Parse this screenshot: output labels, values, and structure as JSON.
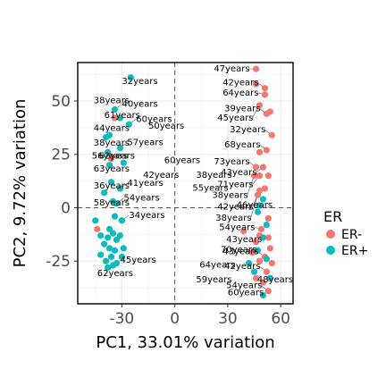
{
  "chart_data": {
    "type": "scatter",
    "title": "",
    "xlabel": "PC1, 33.01% variation",
    "ylabel": "PC2, 9.72% variation",
    "xlim": [
      -55,
      67
    ],
    "ylim": [
      -45,
      68
    ],
    "xticks": [
      -30,
      0,
      30,
      60
    ],
    "xtick_labels": [
      "-30",
      "0",
      "30",
      "60"
    ],
    "yticks": [
      -25,
      0,
      25,
      50
    ],
    "ytick_labels": [
      "-25",
      "0",
      "25",
      "50"
    ],
    "grid": true,
    "reference_lines": {
      "x": 0,
      "y": 0
    },
    "legend": {
      "title": "ER",
      "position": "right",
      "entries": [
        {
          "label": "ER-",
          "color": "#F8766D"
        },
        {
          "label": "ER+",
          "color": "#00BFC4"
        }
      ]
    },
    "series": [
      {
        "name": "ER-",
        "color": "#F8766D",
        "points": [
          {
            "x": 46,
            "y": 65,
            "label": "47years"
          },
          {
            "x": 46,
            "y": 58
          },
          {
            "x": 51,
            "y": 56,
            "label": "42years"
          },
          {
            "x": 51,
            "y": 53,
            "label": "64years"
          },
          {
            "x": 52,
            "y": 44,
            "label": "39years"
          },
          {
            "x": 54,
            "y": 45
          },
          {
            "x": 48,
            "y": 48,
            "label": "45years"
          },
          {
            "x": 55,
            "y": 34,
            "label": "32years"
          },
          {
            "x": 52,
            "y": 27,
            "label": "68years"
          },
          {
            "x": 48,
            "y": 26
          },
          {
            "x": 46,
            "y": 19,
            "label": "73years"
          },
          {
            "x": 50,
            "y": 19,
            "label": "43years"
          },
          {
            "x": 48,
            "y": 15,
            "label": "71years"
          },
          {
            "x": 53,
            "y": 15
          },
          {
            "x": 45,
            "y": 15,
            "label": "38years"
          },
          {
            "x": 51,
            "y": 9
          },
          {
            "x": 48,
            "y": 8,
            "label": "42years"
          },
          {
            "x": 47,
            "y": 6,
            "label": "38years"
          },
          {
            "x": 53,
            "y": -5
          },
          {
            "x": 49,
            "y": -10,
            "label": "54years"
          },
          {
            "x": 39,
            "y": -11
          },
          {
            "x": 48,
            "y": -13
          },
          {
            "x": 53,
            "y": -14,
            "label": "43years"
          },
          {
            "x": 46,
            "y": -16
          },
          {
            "x": 54,
            "y": -19
          },
          {
            "x": 44,
            "y": -21
          },
          {
            "x": 51,
            "y": -23,
            "label": "43years"
          },
          {
            "x": 48,
            "y": -25
          },
          {
            "x": 55,
            "y": -26
          },
          {
            "x": 52,
            "y": -30,
            "label": "42years"
          },
          {
            "x": 46,
            "y": -33
          },
          {
            "x": 50,
            "y": -35
          },
          {
            "x": 53,
            "y": -39,
            "label": "54years"
          },
          {
            "x": -44,
            "y": -10
          },
          {
            "x": -34,
            "y": 42
          },
          {
            "x": -36,
            "y": 23
          }
        ]
      },
      {
        "name": "ER+",
        "color": "#00BFC4",
        "points": [
          {
            "x": -25,
            "y": 61
          },
          {
            "x": -34,
            "y": 46,
            "label": "40years"
          },
          {
            "x": -31,
            "y": 42
          },
          {
            "x": -26,
            "y": 39,
            "label": "60years"
          },
          {
            "x": -37,
            "y": 34
          },
          {
            "x": -39,
            "y": 33
          },
          {
            "x": -31,
            "y": 28,
            "label": "57years"
          },
          {
            "x": -38,
            "y": 26
          },
          {
            "x": -29,
            "y": 21
          },
          {
            "x": -37,
            "y": 20
          },
          {
            "x": -36,
            "y": 12
          },
          {
            "x": -31,
            "y": 9,
            "label": "41years"
          },
          {
            "x": -40,
            "y": 7
          },
          {
            "x": -35,
            "y": 3
          },
          {
            "x": -33,
            "y": 2,
            "label": "54years"
          },
          {
            "x": -34,
            "y": -4
          },
          {
            "x": -30,
            "y": -6,
            "label": "34years"
          },
          {
            "x": -45,
            "y": -6
          },
          {
            "x": -37,
            "y": -10
          },
          {
            "x": -42,
            "y": -13
          },
          {
            "x": -38,
            "y": -14
          },
          {
            "x": -35,
            "y": -12
          },
          {
            "x": -31,
            "y": -13
          },
          {
            "x": -33,
            "y": -15
          },
          {
            "x": -40,
            "y": -17
          },
          {
            "x": -37,
            "y": -19
          },
          {
            "x": -34,
            "y": -20
          },
          {
            "x": -29,
            "y": -19
          },
          {
            "x": -42,
            "y": -22
          },
          {
            "x": -36,
            "y": -23
          },
          {
            "x": -39,
            "y": -25
          },
          {
            "x": -33,
            "y": -26
          },
          {
            "x": -35,
            "y": -27,
            "label": "45years"
          },
          {
            "x": -30,
            "y": -23
          },
          {
            "x": -38,
            "y": -28
          },
          {
            "x": 50,
            "y": 4
          },
          {
            "x": 48,
            "y": 1
          },
          {
            "x": 47,
            "y": -2
          },
          {
            "x": 52,
            "y": -8
          },
          {
            "x": 50,
            "y": -14
          },
          {
            "x": 47,
            "y": -20
          },
          {
            "x": 52,
            "y": -24
          },
          {
            "x": 42,
            "y": -26
          },
          {
            "x": 45,
            "y": -30
          },
          {
            "x": 54,
            "y": -33
          },
          {
            "x": 50,
            "y": -41
          }
        ]
      }
    ],
    "free_labels": [
      {
        "text": "32years",
        "x": -30,
        "y": 58
      },
      {
        "text": "38years",
        "x": -46,
        "y": 49
      },
      {
        "text": "61years",
        "x": -40,
        "y": 42
      },
      {
        "text": "50years",
        "x": -15,
        "y": 37
      },
      {
        "text": "44years",
        "x": -46,
        "y": 36
      },
      {
        "text": "38years",
        "x": -46,
        "y": 29
      },
      {
        "text": "62years",
        "x": -43,
        "y": 23
      },
      {
        "text": "56years",
        "x": -47,
        "y": 23
      },
      {
        "text": "60years",
        "x": -6,
        "y": 21
      },
      {
        "text": "38years",
        "x": 12,
        "y": 14
      },
      {
        "text": "55years",
        "x": 10,
        "y": 8
      },
      {
        "text": "63years",
        "x": -46,
        "y": 17
      },
      {
        "text": "36years",
        "x": -46,
        "y": 9
      },
      {
        "text": "42years",
        "x": -18,
        "y": 14
      },
      {
        "text": "58years",
        "x": -46,
        "y": 1
      },
      {
        "text": "46years",
        "x": 35,
        "y": 0
      },
      {
        "text": "70years",
        "x": 26,
        "y": -21
      },
      {
        "text": "64years",
        "x": 14,
        "y": -28
      },
      {
        "text": "59years",
        "x": 12,
        "y": -35
      },
      {
        "text": "60years",
        "x": 30,
        "y": -41
      },
      {
        "text": "48years",
        "x": 56,
        "y": -35
      },
      {
        "text": "62years",
        "x": -44,
        "y": -32
      }
    ]
  }
}
